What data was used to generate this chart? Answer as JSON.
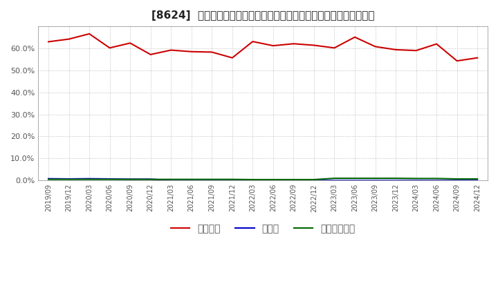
{
  "title": "[8624]  自己資本、のれん、繰延税金資産の総資産に対する比率の推移",
  "x_labels": [
    "2019/09",
    "2019/12",
    "2020/03",
    "2020/06",
    "2020/09",
    "2020/12",
    "2021/03",
    "2021/06",
    "2021/09",
    "2021/12",
    "2022/03",
    "2022/06",
    "2022/09",
    "2022/12",
    "2023/03",
    "2023/06",
    "2023/09",
    "2023/12",
    "2024/03",
    "2024/06",
    "2024/09",
    "2024/12"
  ],
  "equity_ratio": [
    0.63,
    0.642,
    0.666,
    0.602,
    0.624,
    0.572,
    0.592,
    0.585,
    0.583,
    0.557,
    0.631,
    0.612,
    0.621,
    0.614,
    0.602,
    0.651,
    0.608,
    0.594,
    0.59,
    0.62,
    0.543,
    0.557
  ],
  "noren_ratio": [
    0.008,
    0.007,
    0.008,
    0.007,
    0.006,
    0.006,
    0.0,
    0.0,
    0.0,
    0.0,
    0.0,
    0.0,
    0.0,
    0.0,
    0.0,
    0.0,
    0.0,
    0.0,
    0.0,
    0.0,
    0.0,
    0.0
  ],
  "deferred_tax_ratio": [
    0.005,
    0.005,
    0.005,
    0.005,
    0.005,
    0.005,
    0.005,
    0.005,
    0.005,
    0.005,
    0.004,
    0.004,
    0.004,
    0.004,
    0.01,
    0.01,
    0.01,
    0.01,
    0.009,
    0.009,
    0.007,
    0.007
  ],
  "equity_color": "#cc0000",
  "noren_color": "#0000cc",
  "deferred_tax_color": "#006600",
  "bg_color": "#ffffff",
  "plot_bg_color": "#ffffff",
  "grid_color": "#bbbbbb",
  "ylim": [
    0.0,
    0.7
  ],
  "yticks": [
    0.0,
    0.1,
    0.2,
    0.3,
    0.4,
    0.5,
    0.6
  ],
  "legend_labels": [
    "自己資本",
    "のれん",
    "繰延税金資産"
  ],
  "tick_label_color": "#555555",
  "title_color": "#222222"
}
